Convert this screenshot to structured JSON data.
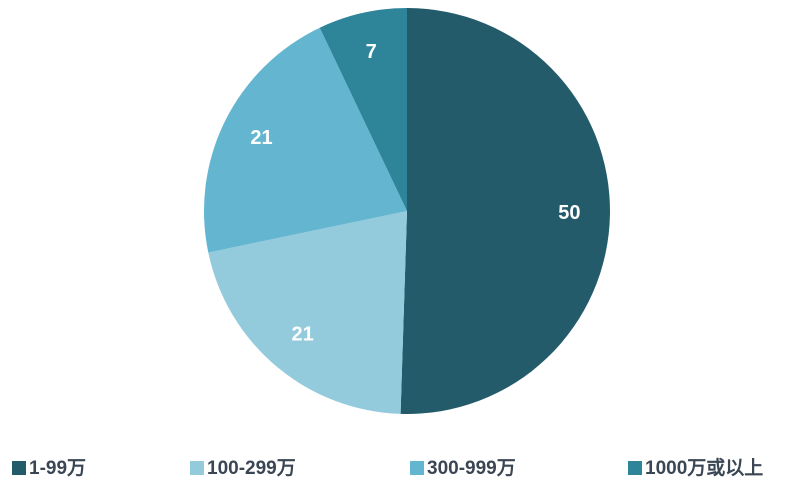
{
  "chart_data": {
    "type": "pie",
    "categories": [
      "1-99万",
      "100-299万",
      "300-999万",
      "1000万或以上"
    ],
    "values": [
      50,
      21,
      21,
      7
    ],
    "colors": [
      "#235b6a",
      "#93cbdd",
      "#64b6d0",
      "#2e8499"
    ],
    "legend": "bottom"
  }
}
